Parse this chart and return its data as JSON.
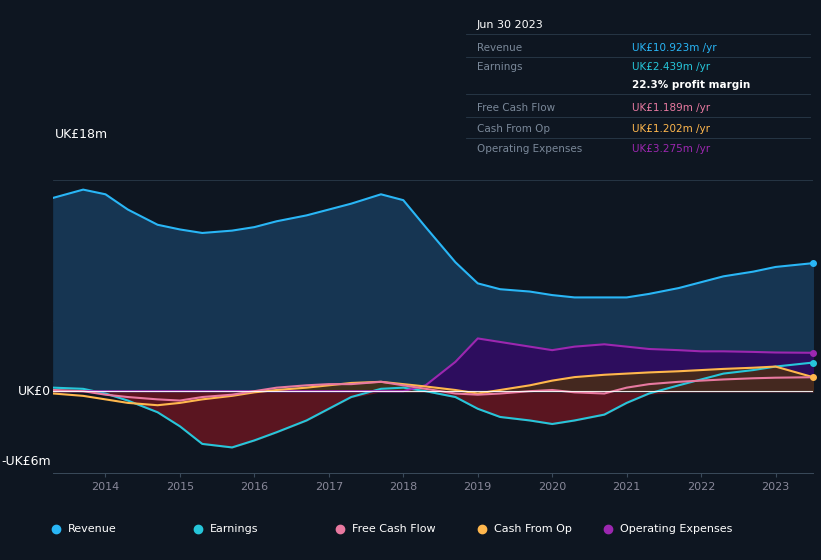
{
  "bg_color": "#0e1621",
  "chart_bg": "#0e1621",
  "ylabel_top": "UK£18m",
  "ylabel_zero": "UK£0",
  "ylabel_neg": "-UK£6m",
  "years": [
    2013.3,
    2013.7,
    2014.0,
    2014.3,
    2014.7,
    2015.0,
    2015.3,
    2015.7,
    2016.0,
    2016.3,
    2016.7,
    2017.0,
    2017.3,
    2017.7,
    2018.0,
    2018.3,
    2018.7,
    2019.0,
    2019.3,
    2019.7,
    2020.0,
    2020.3,
    2020.7,
    2021.0,
    2021.3,
    2021.7,
    2022.0,
    2022.3,
    2022.7,
    2023.0,
    2023.5
  ],
  "revenue": [
    16.5,
    17.2,
    16.8,
    15.5,
    14.2,
    13.8,
    13.5,
    13.7,
    14.0,
    14.5,
    15.0,
    15.5,
    16.0,
    16.8,
    16.3,
    14.0,
    11.0,
    9.2,
    8.7,
    8.5,
    8.2,
    8.0,
    8.0,
    8.0,
    8.3,
    8.8,
    9.3,
    9.8,
    10.2,
    10.6,
    10.923
  ],
  "earnings": [
    0.3,
    0.2,
    -0.2,
    -0.8,
    -1.8,
    -3.0,
    -4.5,
    -4.8,
    -4.2,
    -3.5,
    -2.5,
    -1.5,
    -0.5,
    0.2,
    0.3,
    0.0,
    -0.5,
    -1.5,
    -2.2,
    -2.5,
    -2.8,
    -2.5,
    -2.0,
    -1.0,
    -0.2,
    0.5,
    1.0,
    1.5,
    1.8,
    2.1,
    2.439
  ],
  "free_cash_flow": [
    0.1,
    0.0,
    -0.3,
    -0.5,
    -0.7,
    -0.8,
    -0.5,
    -0.3,
    0.0,
    0.3,
    0.5,
    0.6,
    0.6,
    0.8,
    0.5,
    0.2,
    -0.2,
    -0.3,
    -0.2,
    0.0,
    0.1,
    -0.1,
    -0.2,
    0.3,
    0.6,
    0.8,
    0.9,
    1.0,
    1.1,
    1.15,
    1.189
  ],
  "cash_from_op": [
    -0.2,
    -0.4,
    -0.7,
    -1.0,
    -1.2,
    -1.0,
    -0.7,
    -0.4,
    -0.1,
    0.1,
    0.3,
    0.5,
    0.7,
    0.8,
    0.6,
    0.4,
    0.1,
    -0.2,
    0.1,
    0.5,
    0.9,
    1.2,
    1.4,
    1.5,
    1.6,
    1.7,
    1.8,
    1.9,
    2.0,
    2.1,
    1.202
  ],
  "operating_expenses": [
    0.0,
    0.0,
    0.0,
    0.0,
    0.0,
    0.0,
    0.0,
    0.0,
    0.0,
    0.0,
    0.0,
    0.0,
    0.0,
    0.0,
    0.0,
    0.5,
    2.5,
    4.5,
    4.2,
    3.8,
    3.5,
    3.8,
    4.0,
    3.8,
    3.6,
    3.5,
    3.4,
    3.4,
    3.35,
    3.3,
    3.275
  ],
  "revenue_color": "#29b6f6",
  "earnings_color": "#26c6da",
  "free_cash_flow_color": "#e879a0",
  "cash_from_op_color": "#ffb74d",
  "operating_expenses_color": "#9c27b0",
  "revenue_fill": "#163552",
  "earnings_fill_neg": "#5a1520",
  "operating_expenses_fill": "#2d0d5e",
  "cash_from_op_fill": "#4a3010",
  "earnings_fill_pos": "#0d3d30",
  "info_box": {
    "date": "Jun 30 2023",
    "revenue_label": "Revenue",
    "revenue_value": "UK£10.923m /yr",
    "revenue_color": "#29b6f6",
    "earnings_label": "Earnings",
    "earnings_value": "UK£2.439m /yr",
    "earnings_color": "#26c6da",
    "margin_text": "22.3% profit margin",
    "fcf_label": "Free Cash Flow",
    "fcf_value": "UK£1.189m /yr",
    "fcf_color": "#e879a0",
    "cashop_label": "Cash From Op",
    "cashop_value": "UK£1.202m /yr",
    "cashop_color": "#ffb74d",
    "opex_label": "Operating Expenses",
    "opex_value": "UK£3.275m /yr",
    "opex_color": "#9c27b0"
  },
  "x_ticks": [
    2014,
    2015,
    2016,
    2017,
    2018,
    2019,
    2020,
    2021,
    2022,
    2023
  ],
  "ylim": [
    -7,
    20
  ],
  "hline18": 18,
  "hline6": 6
}
